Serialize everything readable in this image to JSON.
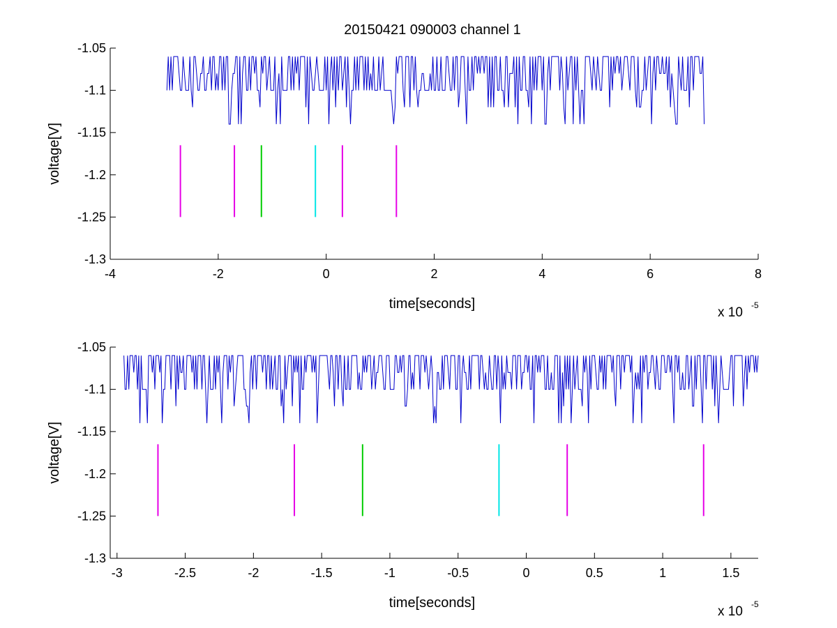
{
  "figure": {
    "title": "20150421 090003 channel 1"
  },
  "chart_data": [
    {
      "type": "line",
      "panel": "top",
      "xlabel": "time[seconds]",
      "ylabel": "voltage[V]",
      "x_multiplier": {
        "base": "x 10",
        "exponent": "-5"
      },
      "xlim": [
        -4,
        8
      ],
      "ylim": [
        -1.3,
        -1.05
      ],
      "xticks": [
        -4,
        -2,
        0,
        2,
        4,
        6,
        8
      ],
      "xtick_labels": [
        "-4",
        "-2",
        "0",
        "2",
        "4",
        "6",
        "8"
      ],
      "yticks": [
        -1.05,
        -1.1,
        -1.15,
        -1.2,
        -1.25,
        -1.3
      ],
      "ytick_labels": [
        "-1.05",
        "-1.1",
        "-1.15",
        "-1.2",
        "-1.25",
        "-1.3"
      ],
      "signal": {
        "color": "#0000cc",
        "x_range": [
          -2.95,
          7.0
        ],
        "levels": [
          -1.06,
          -1.08,
          -1.1,
          -1.12,
          -1.14
        ],
        "baseline": -1.1
      },
      "markers": [
        {
          "x": -2.7,
          "y0": -1.25,
          "y1": -1.165,
          "color": "#e600e6"
        },
        {
          "x": -1.7,
          "y0": -1.25,
          "y1": -1.165,
          "color": "#e600e6"
        },
        {
          "x": -1.2,
          "y0": -1.25,
          "y1": -1.165,
          "color": "#00cc00"
        },
        {
          "x": -0.2,
          "y0": -1.25,
          "y1": -1.165,
          "color": "#00e6e6"
        },
        {
          "x": 0.3,
          "y0": -1.25,
          "y1": -1.165,
          "color": "#e600e6"
        },
        {
          "x": 1.3,
          "y0": -1.25,
          "y1": -1.165,
          "color": "#e600e6"
        }
      ],
      "grid": false,
      "legend": "none"
    },
    {
      "type": "line",
      "panel": "bottom",
      "xlabel": "time[seconds]",
      "ylabel": "voltage[V]",
      "x_multiplier": {
        "base": "x 10",
        "exponent": "-5"
      },
      "xlim": [
        -3.05,
        1.7
      ],
      "ylim": [
        -1.3,
        -1.05
      ],
      "xticks": [
        -3,
        -2.5,
        -2,
        -1.5,
        -1,
        -0.5,
        0,
        0.5,
        1,
        1.5
      ],
      "xtick_labels": [
        "-3",
        "-2.5",
        "-2",
        "-1.5",
        "-1",
        "-0.5",
        "0",
        "0.5",
        "1",
        "1.5"
      ],
      "yticks": [
        -1.05,
        -1.1,
        -1.15,
        -1.2,
        -1.25,
        -1.3
      ],
      "ytick_labels": [
        "-1.05",
        "-1.1",
        "-1.15",
        "-1.2",
        "-1.25",
        "-1.3"
      ],
      "signal": {
        "color": "#0000cc",
        "x_range": [
          -2.95,
          1.7
        ],
        "levels": [
          -1.06,
          -1.08,
          -1.1,
          -1.12,
          -1.14
        ],
        "baseline": -1.1
      },
      "markers": [
        {
          "x": -2.7,
          "y0": -1.25,
          "y1": -1.165,
          "color": "#e600e6"
        },
        {
          "x": -1.7,
          "y0": -1.25,
          "y1": -1.165,
          "color": "#e600e6"
        },
        {
          "x": -1.2,
          "y0": -1.25,
          "y1": -1.165,
          "color": "#00cc00"
        },
        {
          "x": -0.2,
          "y0": -1.25,
          "y1": -1.165,
          "color": "#00e6e6"
        },
        {
          "x": 0.3,
          "y0": -1.25,
          "y1": -1.165,
          "color": "#e600e6"
        },
        {
          "x": 1.3,
          "y0": -1.25,
          "y1": -1.165,
          "color": "#e600e6"
        }
      ],
      "grid": false,
      "legend": "none"
    }
  ]
}
